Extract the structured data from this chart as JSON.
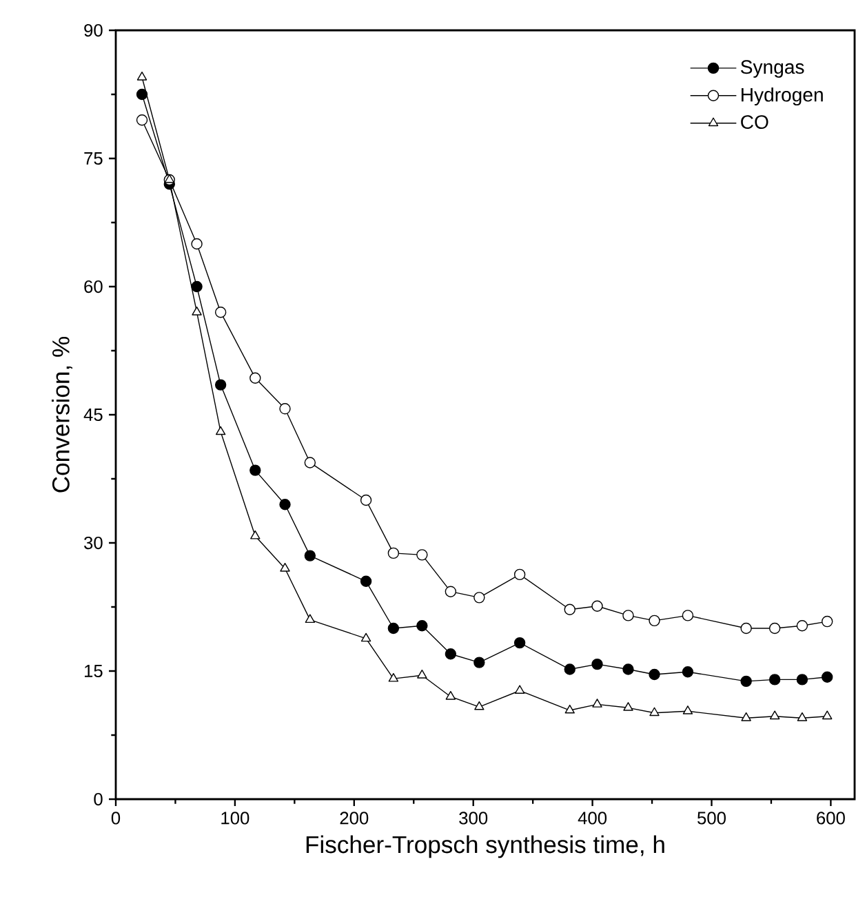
{
  "chart_data": {
    "type": "line",
    "xlabel": "Fischer-Tropsch synthesis time, h",
    "ylabel": "Conversion, %",
    "x": [
      22,
      45,
      68,
      88,
      117,
      142,
      163,
      210,
      233,
      257,
      281,
      305,
      339,
      381,
      404,
      430,
      452,
      480,
      529,
      553,
      576,
      597
    ],
    "series": [
      {
        "name": "Syngas",
        "color": "#000000",
        "marker": "circle",
        "values": [
          82.5,
          72,
          60,
          48.5,
          38.5,
          34.5,
          28.5,
          25.5,
          20,
          20.3,
          17,
          16,
          18.3,
          15.2,
          15.8,
          15.2,
          14.6,
          14.9,
          13.8,
          14,
          14,
          14.3
        ]
      },
      {
        "name": "Hydrogen",
        "color": "#000000",
        "marker": "circle",
        "values": [
          79.5,
          72.5,
          65,
          57,
          49.3,
          45.7,
          39.4,
          35,
          28.8,
          28.6,
          24.3,
          23.6,
          26.3,
          22.2,
          22.6,
          21.5,
          20.9,
          21.5,
          20,
          20,
          20.3,
          20.8
        ]
      },
      {
        "name": "CO",
        "color": "#000000",
        "marker": "triangle",
        "values": [
          84.5,
          72.5,
          57,
          43,
          30.8,
          27,
          21,
          18.8,
          14.1,
          14.5,
          12,
          10.8,
          12.7,
          10.4,
          11.1,
          10.7,
          10.1,
          10.3,
          9.5,
          9.7,
          9.5,
          9.7
        ]
      }
    ],
    "xlim": [
      0,
      620
    ],
    "ylim": [
      0,
      90
    ],
    "xticks": [
      0,
      100,
      200,
      300,
      400,
      500,
      600
    ],
    "yticks": [
      0,
      15,
      30,
      45,
      60,
      75,
      90
    ],
    "legend": "top right",
    "grid": false,
    "line_style": "solid"
  }
}
